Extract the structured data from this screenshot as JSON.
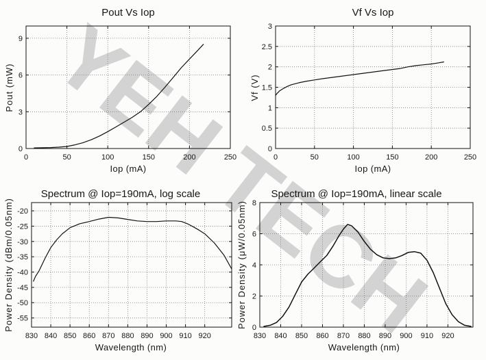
{
  "watermark": "YEH TECH",
  "chart_data": [
    {
      "type": "line",
      "title": "Pout Vs Iop",
      "xlabel": "Iop (mA)",
      "ylabel": "Pout (mW)",
      "xlim": [
        0,
        250
      ],
      "ylim": [
        0,
        10
      ],
      "xticks": [
        0,
        50,
        100,
        150,
        200,
        250
      ],
      "yticks": [
        0,
        3,
        6,
        9
      ],
      "grid": true,
      "series": [
        {
          "x": [
            10,
            20,
            30,
            40,
            50,
            60,
            70,
            80,
            90,
            100,
            110,
            120,
            130,
            140,
            150,
            160,
            170,
            180,
            190,
            200,
            210,
            217
          ],
          "y": [
            0.05,
            0.06,
            0.08,
            0.11,
            0.17,
            0.3,
            0.48,
            0.72,
            1.02,
            1.38,
            1.76,
            2.15,
            2.55,
            3.0,
            3.6,
            4.25,
            5.0,
            5.8,
            6.6,
            7.3,
            8.0,
            8.5
          ]
        }
      ]
    },
    {
      "type": "line",
      "title": "Vf Vs Iop",
      "xlabel": "Iop (mA)",
      "ylabel": "Vf (V)",
      "xlim": [
        0,
        250
      ],
      "ylim": [
        0,
        3
      ],
      "xticks": [
        0,
        50,
        100,
        150,
        200,
        250
      ],
      "yticks": [
        0,
        0.5,
        1,
        1.5,
        2,
        2.5,
        3
      ],
      "grid": true,
      "series": [
        {
          "x": [
            0,
            2,
            5,
            10,
            15,
            20,
            30,
            40,
            50,
            60,
            80,
            100,
            120,
            140,
            160,
            170,
            180,
            190,
            200,
            210,
            216
          ],
          "y": [
            1.3,
            1.35,
            1.41,
            1.47,
            1.52,
            1.56,
            1.61,
            1.65,
            1.68,
            1.71,
            1.76,
            1.81,
            1.86,
            1.91,
            1.96,
            2.0,
            2.03,
            2.05,
            2.07,
            2.1,
            2.12
          ]
        }
      ]
    },
    {
      "type": "line",
      "title": "Spectrum @ Iop=190mA, log scale",
      "xlabel": "Wavelength (nm)",
      "ylabel": "Power Density (dBm/0.05nm)",
      "xlim": [
        830,
        934
      ],
      "ylim": [
        -58,
        -17.3
      ],
      "xticks": [
        830,
        840,
        850,
        860,
        870,
        880,
        890,
        900,
        910,
        920
      ],
      "yticks": [
        -55,
        -50,
        -45,
        -40,
        -35,
        -30,
        -25,
        -20
      ],
      "grid": true,
      "series": [
        {
          "x": [
            831,
            832,
            834,
            837,
            840,
            843,
            846,
            850,
            855,
            860,
            865,
            870,
            875,
            880,
            885,
            890,
            895,
            900,
            905,
            908,
            911,
            914,
            917,
            920,
            925,
            930,
            934
          ],
          "y": [
            -43,
            -41.5,
            -39.5,
            -35.5,
            -32,
            -29.5,
            -27.5,
            -25.5,
            -24.2,
            -23.5,
            -22.7,
            -22.1,
            -22.3,
            -22.8,
            -23.3,
            -23.5,
            -23.5,
            -23.3,
            -23.3,
            -23.5,
            -24.2,
            -25.2,
            -26.3,
            -27.5,
            -30.5,
            -34.5,
            -39
          ]
        }
      ]
    },
    {
      "type": "line",
      "title": "Spectrum @ Iop=190mA, linear scale",
      "xlabel": "Wavelength (nm)",
      "ylabel": "Power Density (μW/0.05nm)",
      "xlim": [
        830,
        932
      ],
      "ylim": [
        0,
        8
      ],
      "xticks": [
        830,
        840,
        850,
        860,
        870,
        880,
        890,
        900,
        910,
        920
      ],
      "yticks": [
        0,
        2,
        4,
        6,
        8
      ],
      "grid": true,
      "series": [
        {
          "x": [
            832,
            835,
            838,
            841,
            844,
            847,
            850,
            853,
            856,
            859,
            862,
            865,
            868,
            870,
            872,
            874,
            877,
            880,
            883,
            886,
            889,
            892,
            895,
            898,
            901,
            904,
            907,
            910,
            913,
            916,
            919,
            922,
            925,
            928,
            931
          ],
          "y": [
            0.05,
            0.12,
            0.3,
            0.7,
            1.3,
            2.1,
            2.9,
            3.4,
            3.8,
            4.2,
            4.6,
            5.2,
            5.9,
            6.3,
            6.6,
            6.5,
            6.1,
            5.5,
            5.0,
            4.65,
            4.45,
            4.4,
            4.45,
            4.6,
            4.8,
            4.85,
            4.75,
            4.3,
            3.5,
            2.5,
            1.5,
            0.8,
            0.35,
            0.12,
            0.05
          ]
        }
      ]
    }
  ]
}
